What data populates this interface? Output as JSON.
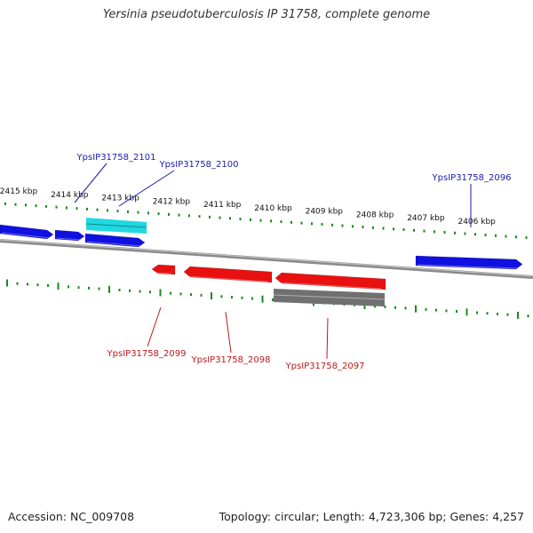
{
  "title": "Yersinia pseudotuberculosis IP 31758, complete genome",
  "footer": {
    "accession": "Accession: NC_009708",
    "summary": "Topology: circular; Length: 4,723,306 bp; Genes: 4,257"
  },
  "colors": {
    "forward_gene": "#1010e0",
    "reverse_gene": "#e81010",
    "highlight_gene": "#20d8e0",
    "other_feature": "#707070",
    "tick": "#1a8a1a",
    "backbone": "#8a8a8a",
    "forward_label": "#1a1ab0",
    "reverse_label": "#c01818"
  },
  "scale_labels": [
    "2415 kbp",
    "2414 kbp",
    "2413 kbp",
    "2412 kbp",
    "2411 kbp",
    "2410 kbp",
    "2409 kbp",
    "2408 kbp",
    "2407 kbp",
    "2406 kbp"
  ],
  "gene_labels": {
    "forward": [
      "YpsIP31758_2101",
      "YpsIP31758_2100",
      "YpsIP31758_2096"
    ],
    "reverse": [
      "YpsIP31758_2099",
      "YpsIP31758_2098",
      "YpsIP31758_2097"
    ]
  }
}
